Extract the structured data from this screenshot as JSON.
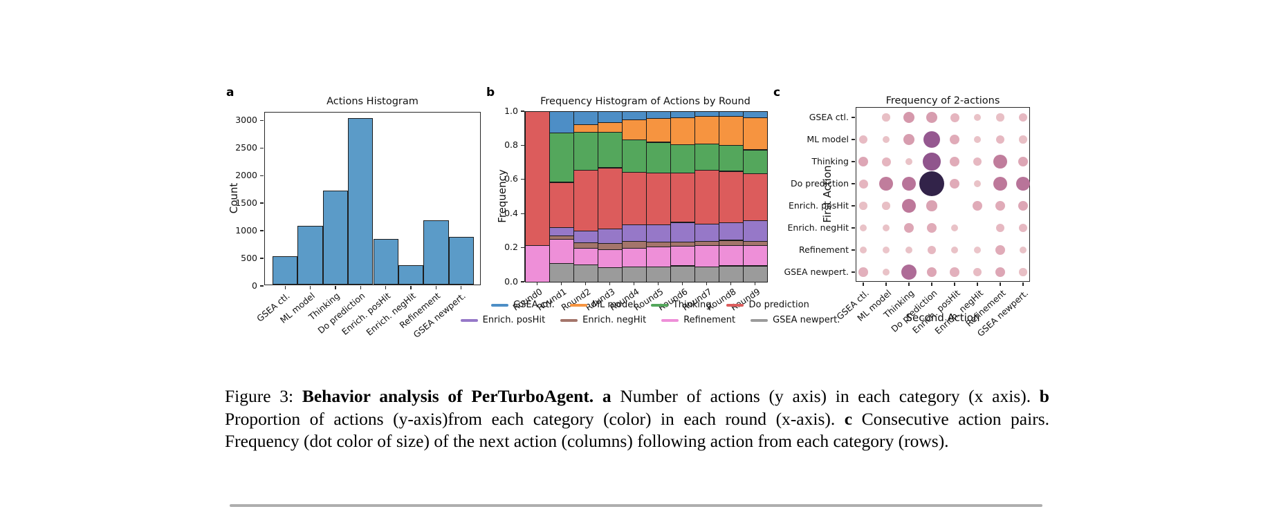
{
  "panels": {
    "a": "a",
    "b": "b",
    "c": "c"
  },
  "chart_data": [
    {
      "type": "bar",
      "panel": "a",
      "title": "Actions Histogram",
      "xlabel": "",
      "ylabel": "Count",
      "categories": [
        "GSEA ctl.",
        "ML model",
        "Thinking",
        "Do prediction",
        "Enrich. posHit",
        "Enrich. negHit",
        "Refinement",
        "GSEA newpert."
      ],
      "values": [
        510,
        1060,
        1700,
        3020,
        830,
        350,
        1160,
        860
      ],
      "yticks": [
        0,
        500,
        1000,
        1500,
        2000,
        2500,
        3000
      ],
      "ylim": [
        0,
        3140
      ],
      "bar_color": "#5b9bc8",
      "bar_edge": "#1d1d1d",
      "grid": false
    },
    {
      "type": "stacked_bar",
      "panel": "b",
      "title": "Frequency Histogram of Actions by Round",
      "xlabel": "",
      "ylabel": "Frequency",
      "categories": [
        "Round0",
        "Round1",
        "Round2",
        "Round3",
        "Round4",
        "Round5",
        "Round6",
        "Round7",
        "Round8",
        "Round9"
      ],
      "ytick_labels": [
        "0.0",
        "0.2",
        "0.4",
        "0.6",
        "0.8",
        "1.0"
      ],
      "ylim": [
        0,
        1
      ],
      "grid": false,
      "series_bottom_to_top": [
        {
          "name": "GSEA newpert.",
          "color": "#9b9b9b",
          "values": [
            0,
            0.11,
            0.1,
            0.085,
            0.09,
            0.09,
            0.095,
            0.09,
            0.095,
            0.095
          ]
        },
        {
          "name": "Refinement",
          "color": "#ee8fd8",
          "values": [
            0.215,
            0.14,
            0.1,
            0.105,
            0.11,
            0.115,
            0.115,
            0.125,
            0.12,
            0.12
          ]
        },
        {
          "name": "Enrich. negHit",
          "color": "#a4756b",
          "values": [
            0,
            0.02,
            0.03,
            0.035,
            0.04,
            0.03,
            0.025,
            0.025,
            0.03,
            0.025
          ]
        },
        {
          "name": "Enrich. posHit",
          "color": "#9678c8",
          "values": [
            0,
            0.05,
            0.07,
            0.085,
            0.095,
            0.1,
            0.115,
            0.1,
            0.105,
            0.12
          ]
        },
        {
          "name": "Do prediction",
          "color": "#dc5c5c",
          "values": [
            0.785,
            0.265,
            0.355,
            0.36,
            0.31,
            0.305,
            0.29,
            0.315,
            0.3,
            0.275
          ]
        },
        {
          "name": "Thinking",
          "color": "#54a75c",
          "values": [
            0,
            0.29,
            0.225,
            0.21,
            0.19,
            0.18,
            0.165,
            0.155,
            0.15,
            0.14
          ]
        },
        {
          "name": "ML model",
          "color": "#f69440",
          "values": [
            0,
            0,
            0.045,
            0.055,
            0.115,
            0.14,
            0.16,
            0.16,
            0.17,
            0.19
          ]
        },
        {
          "name": "GSEA ctl.",
          "color": "#4d8ec6",
          "values": [
            0,
            0.125,
            0.075,
            0.065,
            0.05,
            0.04,
            0.035,
            0.03,
            0.03,
            0.035
          ]
        }
      ]
    },
    {
      "type": "heatmap",
      "panel": "c",
      "title": "Frequency of 2-actions",
      "xlabel": "Second Action",
      "ylabel": "First Action",
      "rows": [
        "GSEA ctl.",
        "ML model",
        "Thinking",
        "Do prediction",
        "Enrich. posHit",
        "Enrich. negHit",
        "Refinement",
        "GSEA newpert."
      ],
      "cols": [
        "GSEA ctl.",
        "ML model",
        "Thinking",
        "Do prediction",
        "Enrich. posHit",
        "Enrich. negHit",
        "Refinement",
        "GSEA newpert."
      ],
      "values": [
        [
          0,
          0.12,
          0.3,
          0.28,
          0.18,
          0.1,
          0.12,
          0.16
        ],
        [
          0.14,
          0.1,
          0.28,
          0.6,
          0.22,
          0.1,
          0.16,
          0.12
        ],
        [
          0.24,
          0.18,
          0.1,
          0.62,
          0.22,
          0.16,
          0.42,
          0.24
        ],
        [
          0.18,
          0.42,
          0.46,
          1.0,
          0.22,
          0.1,
          0.44,
          0.46
        ],
        [
          0.12,
          0.12,
          0.44,
          0.26,
          0,
          0.22,
          0.22,
          0.24
        ],
        [
          0.1,
          0.1,
          0.24,
          0.22,
          0.1,
          0,
          0.16,
          0.16
        ],
        [
          0.1,
          0.08,
          0.1,
          0.16,
          0.1,
          0.08,
          0.22,
          0.1
        ],
        [
          0.2,
          0.1,
          0.5,
          0.24,
          0.2,
          0.14,
          0.24,
          0.12
        ]
      ],
      "encoding": "dot size and color encode relative pair frequency; 0 = no dot",
      "dot_colorscale": [
        [
          0,
          "#efd2d2"
        ],
        [
          0.18,
          "#e5b5bf"
        ],
        [
          0.32,
          "#d293a8"
        ],
        [
          0.45,
          "#bb7699"
        ],
        [
          0.58,
          "#9a5b93"
        ],
        [
          0.75,
          "#6e4178"
        ],
        [
          1,
          "#322349"
        ]
      ],
      "dot_size_px": {
        "min": 8,
        "scale": 28
      }
    }
  ],
  "legend": {
    "rows": [
      [
        "GSEA ctl.",
        "ML model",
        "Thinking",
        "Do prediction"
      ],
      [
        "Enrich. posHit",
        "Enrich. negHit",
        "Refinement",
        "GSEA newpert."
      ]
    ]
  },
  "caption": {
    "segments": [
      {
        "text": "Figure 3: ",
        "bold": false
      },
      {
        "text": "Behavior analysis of PerTurboAgent. a ",
        "bold": true
      },
      {
        "text": "Number of actions (y axis) in each category (x axis). ",
        "bold": false
      },
      {
        "text": "b",
        "bold": true
      },
      {
        "text": " Proportion of actions (y-axis)from each category (color) in each round (x-axis). ",
        "bold": false
      },
      {
        "text": "c",
        "bold": true
      },
      {
        "text": " Consecutive action pairs. Frequency (dot color of size) of the next action (columns) following action from each category (rows).",
        "bold": false
      }
    ]
  }
}
